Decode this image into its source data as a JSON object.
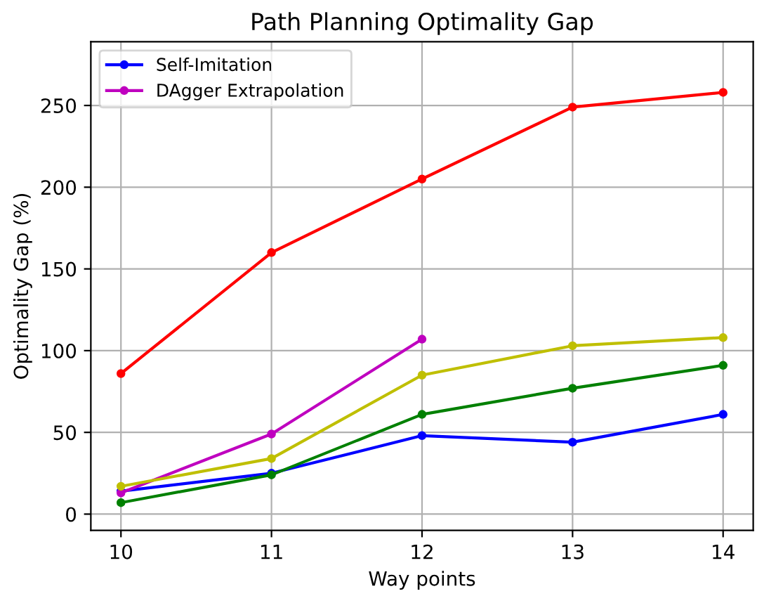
{
  "chart_data": {
    "type": "line",
    "title": "Path Planning Optimality Gap",
    "xlabel": "Way points",
    "ylabel": "Optimality Gap (%)",
    "x": [
      10,
      11,
      12,
      13,
      14
    ],
    "series": [
      {
        "name": "Self-Imitation",
        "color": "#0000ff",
        "values": [
          14,
          25,
          48,
          44,
          61
        ]
      },
      {
        "name": "DAgger Extrapolation",
        "color": "#bf00bf",
        "values": [
          13,
          49,
          107,
          null,
          null
        ]
      },
      {
        "color": "#ff0000",
        "values": [
          86,
          160,
          205,
          249,
          258
        ]
      },
      {
        "color": "#bfbf00",
        "values": [
          17,
          34,
          85,
          103,
          108
        ]
      },
      {
        "color": "#008000",
        "values": [
          7,
          24,
          61,
          77,
          91
        ]
      }
    ],
    "xlim": [
      9.8,
      14.2
    ],
    "xticks": [
      10,
      11,
      12,
      13,
      14
    ],
    "ylim": [
      -10,
      289
    ],
    "yticks": [
      0,
      50,
      100,
      150,
      200,
      250
    ],
    "grid": true,
    "legend": "top left",
    "marker": "circle",
    "line_style": "solid"
  }
}
